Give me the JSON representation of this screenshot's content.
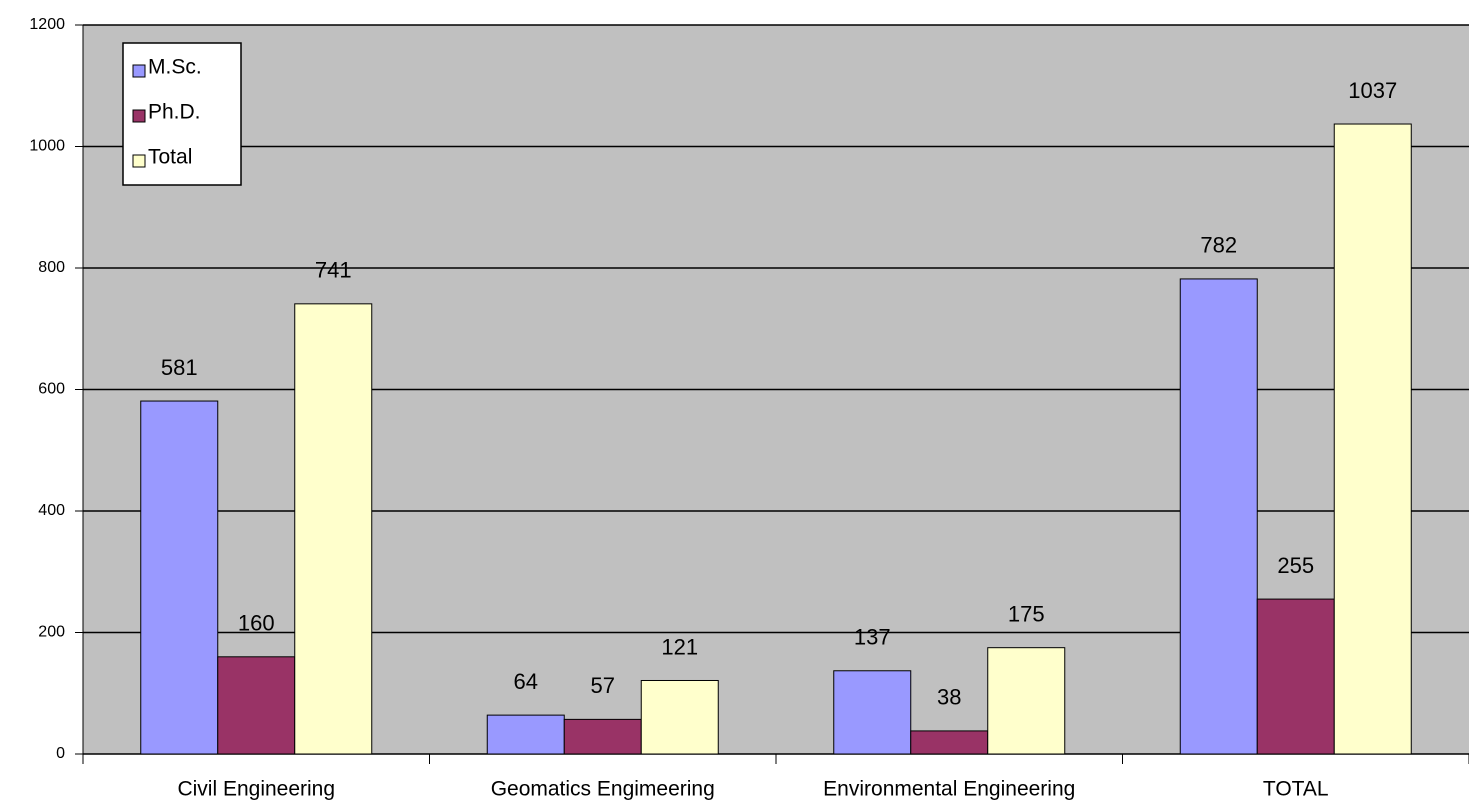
{
  "chart_data": {
    "type": "bar",
    "categories": [
      "Civil Engineering",
      "Geomatics Engimeering",
      "Environmental Engineering",
      "TOTAL"
    ],
    "series": [
      {
        "name": "M.Sc.",
        "color": "#9999ff",
        "values": [
          581,
          64,
          137,
          782
        ]
      },
      {
        "name": "Ph.D.",
        "color": "#993366",
        "values": [
          160,
          57,
          38,
          255
        ]
      },
      {
        "name": "Total",
        "color": "#ffffcc",
        "values": [
          741,
          121,
          175,
          1037
        ]
      }
    ],
    "ylim": [
      0,
      1200
    ],
    "yticks": [
      0,
      200,
      400,
      600,
      800,
      1000,
      1200
    ],
    "grid": true,
    "legend": "upper left",
    "background": "#c0c0c0"
  }
}
